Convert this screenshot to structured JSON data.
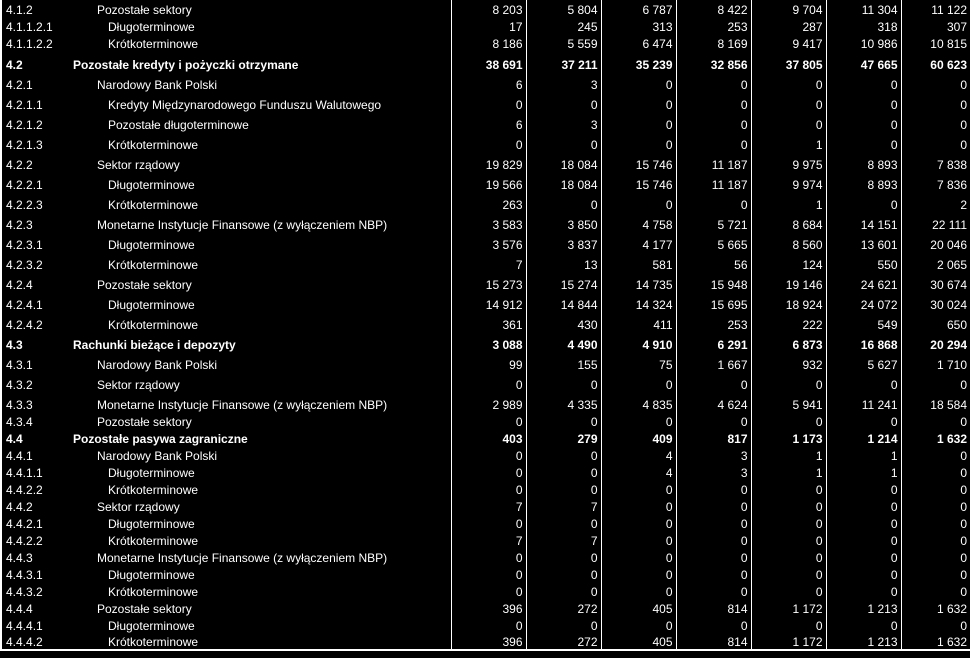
{
  "rows": [
    {
      "code": "4.1.2",
      "label": "Pozostałe sektory",
      "level": 1,
      "bold": false,
      "h": 17,
      "values": [
        "8 203",
        "5 804",
        "6 787",
        "8 422",
        "9 704",
        "11 304",
        "11 122"
      ]
    },
    {
      "code": "4.1.1.2.1",
      "label": "Długoterminowe",
      "level": 2,
      "bold": false,
      "h": 17,
      "values": [
        "17",
        "245",
        "313",
        "253",
        "287",
        "318",
        "307"
      ]
    },
    {
      "code": "4.1.1.2.2",
      "label": "Krótkoterminowe",
      "level": 2,
      "bold": false,
      "h": 17,
      "values": [
        "8 186",
        "5 559",
        "6 474",
        "8 169",
        "9 417",
        "10 986",
        "10 815"
      ]
    },
    {
      "code": "4.2",
      "label": "Pozostałe kredyty i pożyczki otrzymane",
      "level": 0,
      "bold": true,
      "h": 21,
      "values": [
        "38 691",
        "37 211",
        "35 239",
        "32 856",
        "37 805",
        "47 665",
        "60 623"
      ]
    },
    {
      "code": "4.2.1",
      "label": "Narodowy Bank Polski",
      "level": 1,
      "bold": false,
      "h": 20,
      "values": [
        "6",
        "3",
        "0",
        "0",
        "0",
        "0",
        "0"
      ]
    },
    {
      "code": "4.2.1.1",
      "label": "Kredyty Międzynarodowego Funduszu Walutowego",
      "level": 2,
      "bold": false,
      "h": 20,
      "values": [
        "0",
        "0",
        "0",
        "0",
        "0",
        "0",
        "0"
      ]
    },
    {
      "code": "4.2.1.2",
      "label": "Pozostałe długoterminowe",
      "level": 2,
      "bold": false,
      "h": 20,
      "values": [
        "6",
        "3",
        "0",
        "0",
        "0",
        "0",
        "0"
      ]
    },
    {
      "code": "4.2.1.3",
      "label": "Krótkoterminowe",
      "level": 2,
      "bold": false,
      "h": 20,
      "values": [
        "0",
        "0",
        "0",
        "0",
        "1",
        "0",
        "0"
      ]
    },
    {
      "code": "4.2.2",
      "label": "Sektor rządowy",
      "level": 1,
      "bold": false,
      "h": 20,
      "values": [
        "19 829",
        "18 084",
        "15 746",
        "11 187",
        "9 975",
        "8 893",
        "7 838"
      ]
    },
    {
      "code": "4.2.2.1",
      "label": "Długoterminowe",
      "level": 2,
      "bold": false,
      "h": 20,
      "values": [
        "19 566",
        "18 084",
        "15 746",
        "11 187",
        "9 974",
        "8 893",
        "7 836"
      ]
    },
    {
      "code": "4.2.2.3",
      "label": "Krótkoterminowe",
      "level": 2,
      "bold": false,
      "h": 20,
      "values": [
        "263",
        "0",
        "0",
        "0",
        "1",
        "0",
        "2"
      ]
    },
    {
      "code": "4.2.3",
      "label": "Monetarne Instytucje Finansowe (z wyłączeniem NBP)",
      "level": 1,
      "bold": false,
      "h": 20,
      "values": [
        "3 583",
        "3 850",
        "4 758",
        "5 721",
        "8 684",
        "14 151",
        "22 111"
      ]
    },
    {
      "code": "4.2.3.1",
      "label": "Długoterminowe",
      "level": 2,
      "bold": false,
      "h": 20,
      "values": [
        "3 576",
        "3 837",
        "4 177",
        "5 665",
        "8 560",
        "13 601",
        "20 046"
      ]
    },
    {
      "code": "4.2.3.2",
      "label": "Krótkoterminowe",
      "level": 2,
      "bold": false,
      "h": 20,
      "values": [
        "7",
        "13",
        "581",
        "56",
        "124",
        "550",
        "2 065"
      ]
    },
    {
      "code": "4.2.4",
      "label": "Pozostałe sektory",
      "level": 1,
      "bold": false,
      "h": 20,
      "values": [
        "15 273",
        "15 274",
        "14 735",
        "15 948",
        "19 146",
        "24 621",
        "30 674"
      ]
    },
    {
      "code": "4.2.4.1",
      "label": "Długoterminowe",
      "level": 2,
      "bold": false,
      "h": 20,
      "values": [
        "14 912",
        "14 844",
        "14 324",
        "15 695",
        "18 924",
        "24 072",
        "30 024"
      ]
    },
    {
      "code": "4.2.4.2",
      "label": "Krótkoterminowe",
      "level": 2,
      "bold": false,
      "h": 20,
      "values": [
        "361",
        "430",
        "411",
        "253",
        "222",
        "549",
        "650"
      ]
    },
    {
      "code": "4.3",
      "label": "Rachunki bieżące i depozyty",
      "level": 0,
      "bold": true,
      "h": 20,
      "values": [
        "3 088",
        "4 490",
        "4 910",
        "6 291",
        "6 873",
        "16 868",
        "20 294"
      ]
    },
    {
      "code": "4.3.1",
      "label": "Narodowy Bank Polski",
      "level": 1,
      "bold": false,
      "h": 20,
      "values": [
        "99",
        "155",
        "75",
        "1 667",
        "932",
        "5 627",
        "1 710"
      ]
    },
    {
      "code": "4.3.2",
      "label": "Sektor rządowy",
      "level": 1,
      "bold": false,
      "h": 20,
      "values": [
        "0",
        "0",
        "0",
        "0",
        "0",
        "0",
        "0"
      ]
    },
    {
      "code": "4.3.3",
      "label": "Monetarne Instytucje Finansowe (z wyłączeniem NBP)",
      "level": 1,
      "bold": false,
      "h": 20,
      "values": [
        "2 989",
        "4 335",
        "4 835",
        "4 624",
        "5 941",
        "11 241",
        "18 584"
      ]
    },
    {
      "code": "4.3.4",
      "label": "Pozostałe sektory",
      "level": 1,
      "bold": false,
      "h": 17,
      "values": [
        "0",
        "0",
        "0",
        "0",
        "0",
        "0",
        "0"
      ]
    },
    {
      "code": "4.4",
      "label": "Pozostałe pasywa zagraniczne",
      "level": 0,
      "bold": true,
      "h": 17,
      "values": [
        "403",
        "279",
        "409",
        "817",
        "1 173",
        "1 214",
        "1 632"
      ]
    },
    {
      "code": "4.4.1",
      "label": "Narodowy Bank Polski",
      "level": 1,
      "bold": false,
      "h": 17,
      "values": [
        "0",
        "0",
        "4",
        "3",
        "1",
        "1",
        "0"
      ]
    },
    {
      "code": "4.4.1.1",
      "label": "Długoterminowe",
      "level": 2,
      "bold": false,
      "h": 17,
      "values": [
        "0",
        "0",
        "4",
        "3",
        "1",
        "1",
        "0"
      ]
    },
    {
      "code": "4.4.2.2",
      "label": "Krótkoterminowe",
      "level": 2,
      "bold": false,
      "h": 17,
      "values": [
        "0",
        "0",
        "0",
        "0",
        "0",
        "0",
        "0"
      ]
    },
    {
      "code": "4.4.2",
      "label": "Sektor rządowy",
      "level": 1,
      "bold": false,
      "h": 17,
      "values": [
        "7",
        "7",
        "0",
        "0",
        "0",
        "0",
        "0"
      ]
    },
    {
      "code": "4.4.2.1",
      "label": "Długoterminowe",
      "level": 2,
      "bold": false,
      "h": 17,
      "values": [
        "0",
        "0",
        "0",
        "0",
        "0",
        "0",
        "0"
      ]
    },
    {
      "code": "4.4.2.2",
      "label": "Krótkoterminowe",
      "level": 2,
      "bold": false,
      "h": 17,
      "values": [
        "7",
        "7",
        "0",
        "0",
        "0",
        "0",
        "0"
      ]
    },
    {
      "code": "4.4.3",
      "label": "Monetarne Instytucje Finansowe (z wyłączeniem NBP)",
      "level": 1,
      "bold": false,
      "h": 17,
      "values": [
        "0",
        "0",
        "0",
        "0",
        "0",
        "0",
        "0"
      ]
    },
    {
      "code": "4.4.3.1",
      "label": "Długoterminowe",
      "level": 2,
      "bold": false,
      "h": 17,
      "values": [
        "0",
        "0",
        "0",
        "0",
        "0",
        "0",
        "0"
      ]
    },
    {
      "code": "4.4.3.2",
      "label": "Krótkoterminowe",
      "level": 2,
      "bold": false,
      "h": 17,
      "values": [
        "0",
        "0",
        "0",
        "0",
        "0",
        "0",
        "0"
      ]
    },
    {
      "code": "4.4.4",
      "label": "Pozostałe sektory",
      "level": 1,
      "bold": false,
      "h": 17,
      "values": [
        "396",
        "272",
        "405",
        "814",
        "1 172",
        "1 213",
        "1 632"
      ]
    },
    {
      "code": "4.4.4.1",
      "label": "Długoterminowe",
      "level": 2,
      "bold": false,
      "h": 17,
      "values": [
        "0",
        "0",
        "0",
        "0",
        "0",
        "0",
        "0"
      ]
    },
    {
      "code": "4.4.4.2",
      "label": "Krótkoterminowe",
      "level": 2,
      "bold": false,
      "h": 17,
      "values": [
        "396",
        "272",
        "405",
        "814",
        "1 172",
        "1 213",
        "1 632"
      ]
    }
  ],
  "colors": {
    "background": "#000000",
    "text": "#ffffff",
    "grid": "#ffffff"
  }
}
